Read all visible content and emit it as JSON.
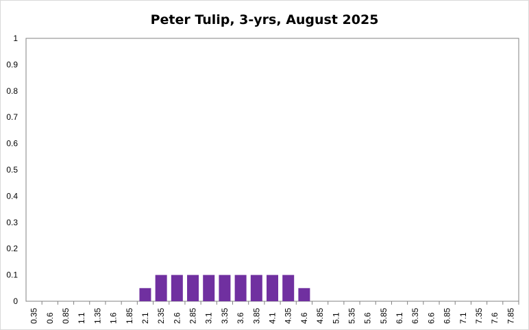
{
  "chart_data": {
    "type": "bar",
    "title": "Peter Tulip, 3-yrs, August 2025",
    "xlabel": "",
    "ylabel": "",
    "ylim": [
      0,
      1
    ],
    "yticks": [
      "0",
      "0.1",
      "0.2",
      "0.3",
      "0.4",
      "0.5",
      "0.6",
      "0.7",
      "0.8",
      "0.9",
      "1"
    ],
    "categories": [
      "0.35",
      "0.6",
      "0.85",
      "1.1",
      "1.35",
      "1.6",
      "1.85",
      "2.1",
      "2.35",
      "2.6",
      "2.85",
      "3.1",
      "3.35",
      "3.6",
      "3.85",
      "4.1",
      "4.35",
      "4.6",
      "4.85",
      "5.1",
      "5.35",
      "5.6",
      "5.85",
      "6.1",
      "6.35",
      "6.6",
      "6.85",
      "7.1",
      "7.35",
      "7.6",
      "7.85"
    ],
    "values": [
      0,
      0,
      0,
      0,
      0,
      0,
      0,
      0.05,
      0.1,
      0.1,
      0.1,
      0.1,
      0.1,
      0.1,
      0.1,
      0.1,
      0.1,
      0.05,
      0,
      0,
      0,
      0,
      0,
      0,
      0,
      0,
      0,
      0,
      0,
      0,
      0
    ],
    "bar_color": "#7030a0",
    "grid": false,
    "legend": "none"
  }
}
